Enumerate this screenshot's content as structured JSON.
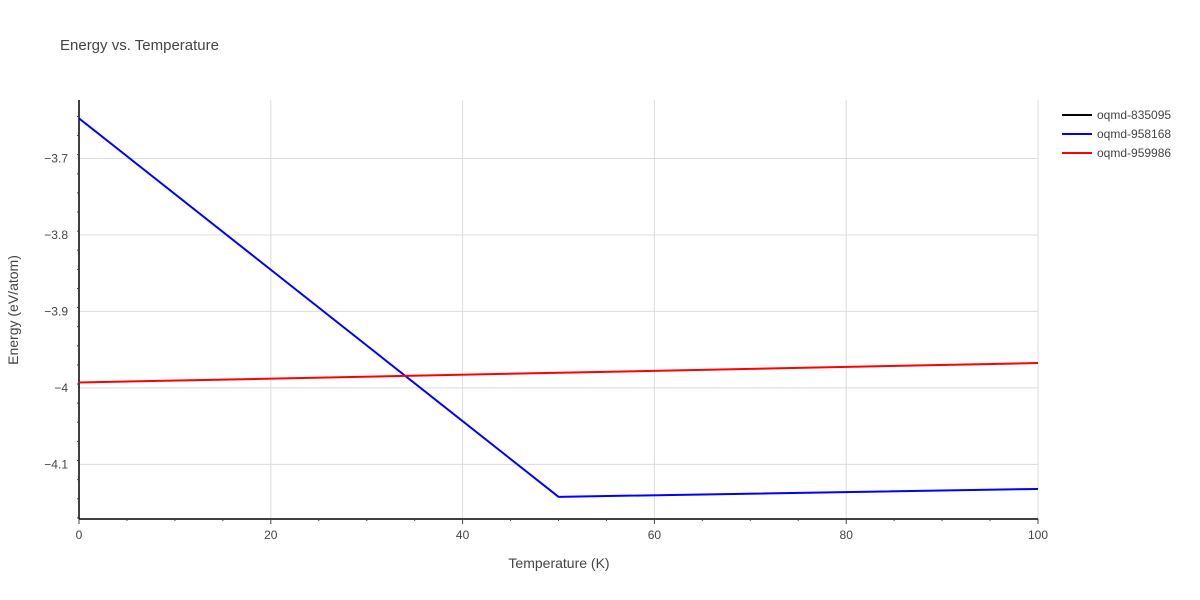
{
  "chart_data": {
    "type": "line",
    "title": "Energy vs. Temperature",
    "xlabel": "Temperature (K)",
    "ylabel": "Energy (eV/atom)",
    "xlim": [
      0,
      100
    ],
    "ylim": [
      -4.1715,
      -3.6235
    ],
    "x_ticks": [
      0,
      20,
      40,
      60,
      80,
      100
    ],
    "x_tick_labels": [
      "0",
      "20",
      "40",
      "60",
      "80",
      "100"
    ],
    "y_ticks": [
      -3.7,
      -3.8,
      -3.9,
      -4.0,
      -4.1
    ],
    "y_tick_labels": [
      "−3.7",
      "−3.8",
      "−3.9",
      "−4",
      "−4.1"
    ],
    "grid": true,
    "legend_position": "top-right",
    "series": [
      {
        "name": "oqmd-835095",
        "color": "#000000",
        "x": [],
        "y": []
      },
      {
        "name": "oqmd-958168",
        "color": "#0000ff",
        "x": [
          0,
          50,
          100
        ],
        "y": [
          -3.6475,
          -4.1425,
          -4.1322
        ]
      },
      {
        "name": "oqmd-959986",
        "color": "#ff0000",
        "x": [
          0,
          100
        ],
        "y": [
          -3.993,
          -3.9675
        ]
      }
    ]
  }
}
